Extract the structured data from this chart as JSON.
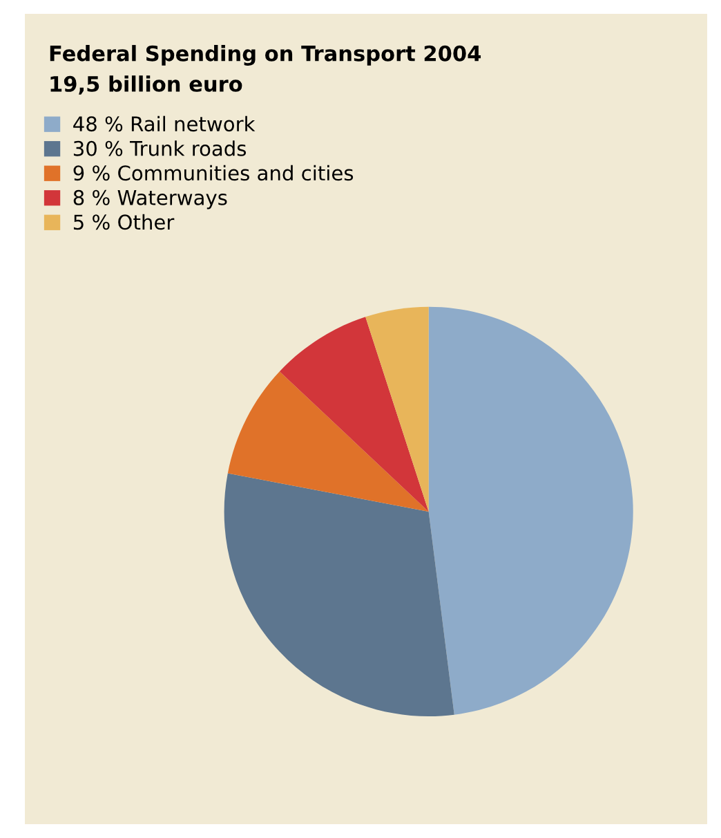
{
  "chart_data": {
    "type": "pie",
    "title": "Federal Spending on Transport 2004",
    "subtitle": "19,5 billion euro",
    "categories": [
      "Rail network",
      "Trunk roads",
      "Communities and cities",
      "Waterways",
      "Other"
    ],
    "values": [
      48,
      30,
      9,
      8,
      5
    ],
    "value_labels": [
      "48 %",
      "30 %",
      "9 %",
      "8 %",
      "5 %"
    ],
    "colors": [
      "#8eabc9",
      "#5d768f",
      "#e07229",
      "#d2363a",
      "#e8b55a"
    ],
    "legend": "top left"
  }
}
